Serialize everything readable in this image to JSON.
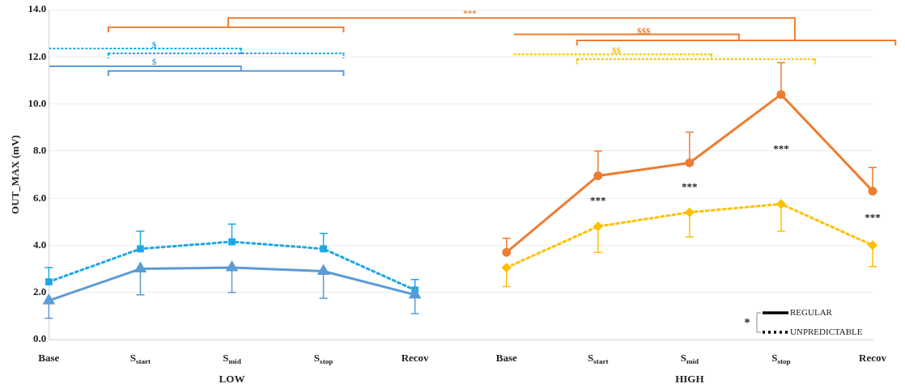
{
  "chart_data": {
    "type": "line",
    "categories": [
      "Base",
      "S$_{start}$",
      "S$_{mid}$",
      "S$_{stop}$",
      "Recov",
      "Base",
      "S$_{start}$",
      "S$_{mid}$",
      "S$_{stop}$",
      "Recov"
    ],
    "ylabel": "OUT_MAX (mV)",
    "ylim": [
      0,
      14
    ],
    "yticks": [
      {
        "value": 0,
        "label": "0.0"
      },
      {
        "value": 2,
        "label": "2.0"
      },
      {
        "value": 4,
        "label": "4.0"
      },
      {
        "value": 6,
        "label": "6.0"
      },
      {
        "value": 8,
        "label": "8.0"
      },
      {
        "value": 10,
        "label": "10.0"
      },
      {
        "value": 12,
        "label": "12.0"
      },
      {
        "value": 14,
        "label": "14.0"
      }
    ],
    "grid": "y",
    "series": [
      {
        "color": "#5b9bd5",
        "marker": "triangle",
        "line_style": "solid",
        "values": [
          1.65,
          3.0,
          3.05,
          2.9,
          1.9,
          null,
          null,
          null,
          null,
          null
        ],
        "errors": [
          [
            0.9,
            1.65
          ],
          [
            1.9,
            3.0
          ],
          [
            2.0,
            3.05
          ],
          [
            1.75,
            2.9
          ],
          [
            1.1,
            1.9
          ],
          null,
          null,
          null,
          null,
          null
        ]
      },
      {
        "color": "#1ba8e8",
        "marker": "square",
        "line_style": "dotted",
        "values": [
          2.45,
          3.85,
          4.15,
          3.85,
          2.1,
          null,
          null,
          null,
          null,
          null
        ],
        "errors": [
          [
            2.45,
            3.05
          ],
          [
            3.85,
            4.6
          ],
          [
            4.15,
            4.9
          ],
          [
            3.85,
            4.5
          ],
          [
            2.1,
            2.55
          ],
          null,
          null,
          null,
          null,
          null
        ]
      },
      {
        "color": "#ed7d31",
        "marker": "circle",
        "line_style": "solid",
        "values": [
          null,
          null,
          null,
          null,
          null,
          3.7,
          6.95,
          7.5,
          10.4,
          6.3
        ],
        "errors": [
          null,
          null,
          null,
          null,
          null,
          [
            3.7,
            4.3
          ],
          [
            6.95,
            8.0
          ],
          [
            7.5,
            8.8
          ],
          [
            10.4,
            11.75
          ],
          [
            6.3,
            7.3
          ]
        ]
      },
      {
        "color": "#ffc000",
        "marker": "diamond",
        "line_style": "dotted",
        "values": [
          null,
          null,
          null,
          null,
          null,
          3.05,
          4.8,
          5.4,
          5.75,
          4.0
        ],
        "errors": [
          null,
          null,
          null,
          null,
          null,
          [
            2.25,
            3.05
          ],
          [
            3.7,
            4.8
          ],
          [
            4.35,
            5.4
          ],
          [
            4.6,
            5.75
          ],
          [
            3.1,
            4.0
          ]
        ]
      }
    ],
    "annotations": [
      "LOW",
      "HIGH",
      "$",
      "$",
      "***",
      "$$$",
      "$$",
      "*",
      "REGULAR",
      "UNPREDICTABLE",
      "***",
      "***",
      "***",
      "***"
    ]
  }
}
